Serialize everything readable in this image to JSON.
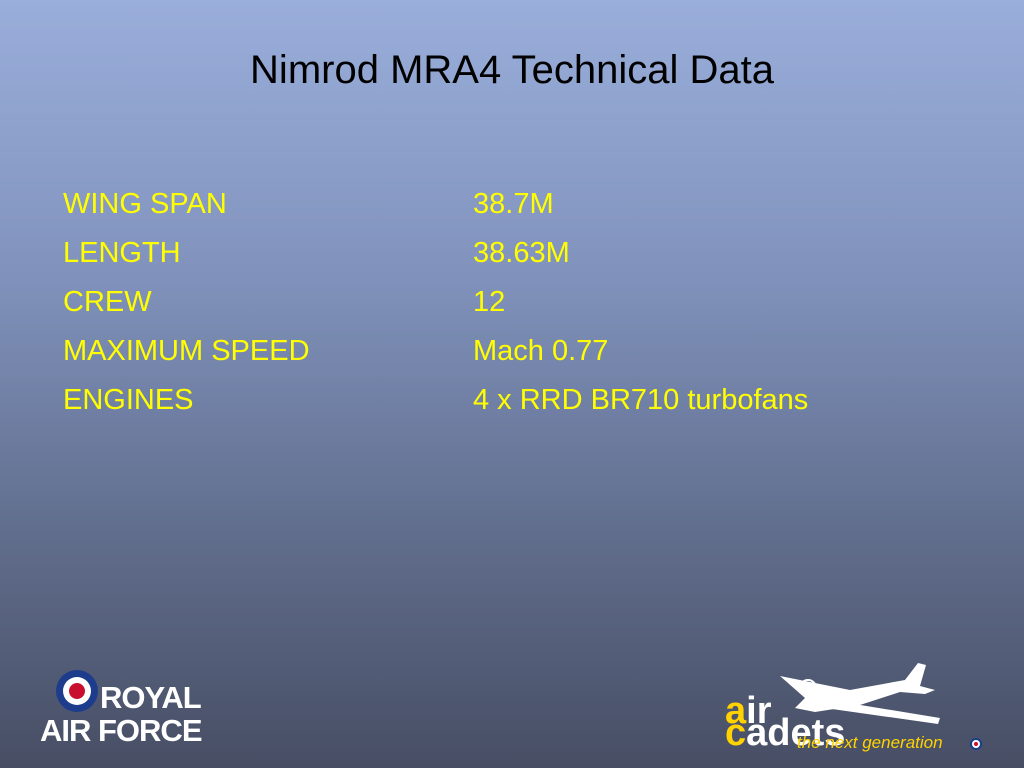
{
  "title": "Nimrod MRA4 Technical Data",
  "table": {
    "rows": [
      [
        "WING SPAN",
        "38.7M"
      ],
      [
        "LENGTH",
        "38.63M"
      ],
      [
        "CREW",
        "12"
      ],
      [
        "MAXIMUM SPEED",
        "Mach 0.77"
      ],
      [
        "ENGINES",
        "4 x RRD BR710 turbofans"
      ]
    ]
  },
  "logos": {
    "raf": {
      "line1": "ROYAL",
      "line2": "AIR FORCE"
    },
    "cadets": {
      "word1": "air",
      "word2": "cadets",
      "tagline": "the next generation"
    }
  }
}
